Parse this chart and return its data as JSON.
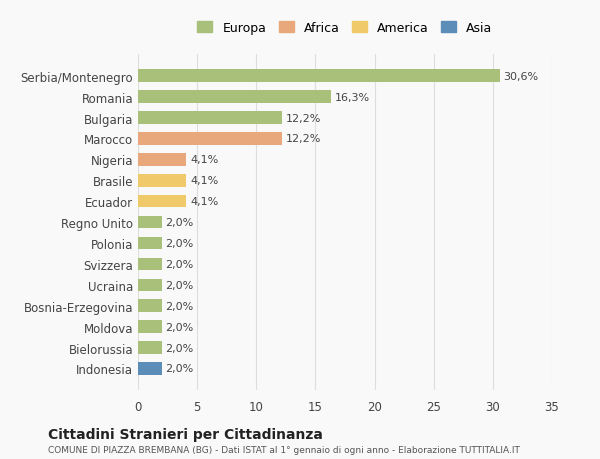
{
  "countries": [
    "Serbia/Montenegro",
    "Romania",
    "Bulgaria",
    "Marocco",
    "Nigeria",
    "Brasile",
    "Ecuador",
    "Regno Unito",
    "Polonia",
    "Svizzera",
    "Ucraina",
    "Bosnia-Erzegovina",
    "Moldova",
    "Bielorussia",
    "Indonesia"
  ],
  "values": [
    30.6,
    16.3,
    12.2,
    12.2,
    4.1,
    4.1,
    4.1,
    2.0,
    2.0,
    2.0,
    2.0,
    2.0,
    2.0,
    2.0,
    2.0
  ],
  "labels": [
    "30,6%",
    "16,3%",
    "12,2%",
    "12,2%",
    "4,1%",
    "4,1%",
    "4,1%",
    "2,0%",
    "2,0%",
    "2,0%",
    "2,0%",
    "2,0%",
    "2,0%",
    "2,0%",
    "2,0%"
  ],
  "continent": [
    "Europa",
    "Europa",
    "Europa",
    "Africa",
    "Africa",
    "America",
    "America",
    "Europa",
    "Europa",
    "Europa",
    "Europa",
    "Europa",
    "Europa",
    "Europa",
    "Asia"
  ],
  "colors": {
    "Europa": "#a8c07a",
    "Africa": "#e8a87c",
    "America": "#f0c96a",
    "Asia": "#5b8db8"
  },
  "legend_colors": {
    "Europa": "#a8c07a",
    "Africa": "#e8a87c",
    "America": "#f0c96a",
    "Asia": "#5b8db8"
  },
  "xlim": [
    0,
    35
  ],
  "xticks": [
    0,
    5,
    10,
    15,
    20,
    25,
    30,
    35
  ],
  "title": "Cittadini Stranieri per Cittadinanza",
  "subtitle": "COMUNE DI PIAZZA BREMBANA (BG) - Dati ISTAT al 1° gennaio di ogni anno - Elaborazione TUTTITALIA.IT",
  "background_color": "#f9f9f9",
  "grid_color": "#dddddd"
}
